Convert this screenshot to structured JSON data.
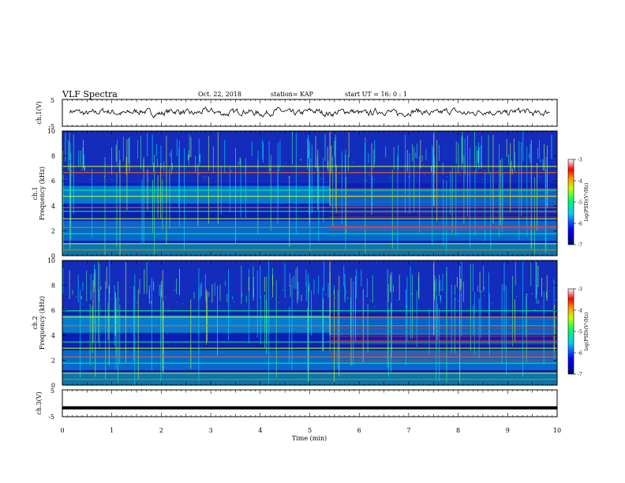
{
  "header": {
    "title": "VLF Spectra",
    "date": "Oct. 22, 2018",
    "station": "station= KAP",
    "start": "start  UT =   16: 0  : 1"
  },
  "colors": {
    "spectrogram_background": "#0a1fb4",
    "waveform": "#000000"
  },
  "chart_data": [
    {
      "type": "line",
      "panel": "ch1-waveform",
      "ylabel": "ch.1(V)",
      "yticks": [
        "5",
        "-5"
      ],
      "ylim": [
        -5,
        5
      ],
      "xlim": [
        0,
        10
      ],
      "description_values": {
        "mean": 0.2,
        "amplitude": 1.6
      }
    },
    {
      "type": "heatmap",
      "panel": "ch1-spectrogram",
      "ylabel_line1": "ch.1",
      "ylabel_line2": "Frequency (kHz)",
      "yticks": [
        "0",
        "2",
        "4",
        "6",
        "8",
        "10"
      ],
      "ylim": [
        0,
        10
      ],
      "xlim": [
        0,
        10
      ],
      "colorbar": {
        "label": "log(PSD)(V²/Hz)",
        "ticks": [
          "-3",
          "-4",
          "-5",
          "-6",
          "-7"
        ],
        "range": [
          -7,
          -3
        ]
      },
      "emission_lines_khz": [
        0.5,
        1.0,
        1.8,
        2.3,
        3.0,
        3.6,
        3.9,
        4.8,
        5.3,
        6.7,
        7.2
      ],
      "transition_minutes": [
        5.4,
        7.5
      ]
    },
    {
      "type": "heatmap",
      "panel": "ch2-spectrogram",
      "ylabel_line1": "ch.2",
      "ylabel_line2": "Frequency (kHz)",
      "yticks": [
        "0",
        "2",
        "4",
        "6",
        "8",
        "10"
      ],
      "ylim": [
        0,
        10
      ],
      "xlim": [
        0,
        10
      ],
      "colorbar": {
        "label": "log(PSD)(V²/Hz)",
        "ticks": [
          "-3",
          "-4",
          "-5",
          "-6",
          "-7"
        ],
        "range": [
          -7,
          -3
        ]
      },
      "emission_lines_khz": [
        0.5,
        1.0,
        1.8,
        2.3,
        3.0,
        3.5,
        4.8,
        5.5,
        6.0
      ],
      "transition_minutes": [
        5.4,
        7.5
      ]
    },
    {
      "type": "line",
      "panel": "ch3-waveform",
      "ylabel": "ch.3(V)",
      "yticks": [
        "5",
        "-5"
      ],
      "ylim": [
        -5,
        5
      ],
      "xlim": [
        0,
        10
      ],
      "constant_value": -1.7
    }
  ],
  "xaxis": {
    "label": "Time (min)",
    "ticks": [
      "0",
      "1",
      "2",
      "3",
      "4",
      "5",
      "6",
      "7",
      "8",
      "9",
      "10"
    ]
  }
}
